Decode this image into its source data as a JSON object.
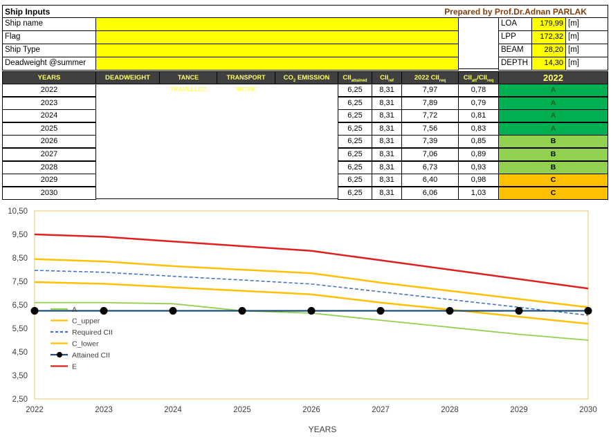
{
  "header": {
    "title": "Ship Inputs",
    "prepared_by": "Prepared by Prof.Dr.Adnan PARLAK"
  },
  "inputs": [
    {
      "label": "Ship name",
      "value": ""
    },
    {
      "label": "Flag",
      "value": ""
    },
    {
      "label": "Ship Type",
      "value": ""
    },
    {
      "label": "Deadweight @summer",
      "value": ""
    }
  ],
  "dimensions": [
    {
      "label": "LOA",
      "value": "179,99",
      "unit": "[m]"
    },
    {
      "label": "LPP",
      "value": "172,32",
      "unit": "[m]"
    },
    {
      "label": "BEAM",
      "value": "28,20",
      "unit": "[m]"
    },
    {
      "label": "DEPTH",
      "value": "14,30",
      "unit": "[m]"
    }
  ],
  "table": {
    "headers": {
      "years": "YEARS",
      "deadweight": "DEADWEIGHT",
      "distance": "TANCE TRAVELLED",
      "transport": "TRANSPORT WORK",
      "co2_main": "CO",
      "co2_sub": "2",
      "co2_tail": " EMISSION",
      "cii_att_main": "CII",
      "cii_att_sub": "attained",
      "cii_ref_main": "CII",
      "cii_ref_sub": "ref",
      "cii_req_main": "2022 CII",
      "cii_req_sub": "req",
      "ratio_main": "CII",
      "ratio_sub1": "att",
      "ratio_mid": "/CII",
      "ratio_sub2": "req",
      "grade_year": "2022"
    },
    "rows": [
      {
        "year": "2022",
        "cii_att": "6,25",
        "cii_ref": "8,31",
        "cii_req": "7,97",
        "ratio": "0,78",
        "grade": "A"
      },
      {
        "year": "2023",
        "cii_att": "6,25",
        "cii_ref": "8,31",
        "cii_req": "7,89",
        "ratio": "0,79",
        "grade": "A"
      },
      {
        "year": "2024",
        "cii_att": "6,25",
        "cii_ref": "8,31",
        "cii_req": "7,72",
        "ratio": "0,81",
        "grade": "A"
      },
      {
        "year": "2025",
        "cii_att": "6,25",
        "cii_ref": "8,31",
        "cii_req": "7,56",
        "ratio": "0,83",
        "grade": "A"
      },
      {
        "year": "2026",
        "cii_att": "6,25",
        "cii_ref": "8,31",
        "cii_req": "7,39",
        "ratio": "0,85",
        "grade": "B"
      },
      {
        "year": "2027",
        "cii_att": "6,25",
        "cii_ref": "8,31",
        "cii_req": "7,06",
        "ratio": "0,89",
        "grade": "B"
      },
      {
        "year": "2028",
        "cii_att": "6,25",
        "cii_ref": "8,31",
        "cii_req": "6,73",
        "ratio": "0,93",
        "grade": "B"
      },
      {
        "year": "2029",
        "cii_att": "6,25",
        "cii_ref": "8,31",
        "cii_req": "6,40",
        "ratio": "0,98",
        "grade": "C"
      },
      {
        "year": "2030",
        "cii_att": "6,25",
        "cii_ref": "8,31",
        "cii_req": "6,06",
        "ratio": "1,03",
        "grade": "C"
      }
    ]
  },
  "colors": {
    "A": "#92d050",
    "C_upper": "#ffc000",
    "Required CII": "#4472c4",
    "C_lower": "#ffc000",
    "Attained CII": "#1f4e79",
    "E": "#e02020"
  },
  "chart_data": {
    "type": "line",
    "x": [
      2022,
      2023,
      2024,
      2025,
      2026,
      2027,
      2028,
      2029,
      2030
    ],
    "xlabel": "YEARS",
    "ylim": [
      2.5,
      10.5
    ],
    "yticks": [
      "2,50",
      "3,50",
      "4,50",
      "5,50",
      "6,50",
      "7,50",
      "8,50",
      "9,50",
      "10,50"
    ],
    "ytick_values": [
      2.5,
      3.5,
      4.5,
      5.5,
      6.5,
      7.5,
      8.5,
      9.5,
      10.5
    ],
    "legend_position": "left",
    "grid": false,
    "series": [
      {
        "name": "A",
        "values": [
          6.6,
          6.6,
          6.55,
          6.25,
          6.15,
          5.85,
          5.55,
          5.25,
          5.0
        ],
        "style": "line"
      },
      {
        "name": "C_upper",
        "values": [
          8.45,
          8.35,
          8.15,
          8.0,
          7.85,
          7.45,
          7.1,
          6.75,
          6.4
        ],
        "style": "line"
      },
      {
        "name": "Required CII",
        "values": [
          7.97,
          7.89,
          7.72,
          7.56,
          7.39,
          7.06,
          6.73,
          6.4,
          6.06
        ],
        "style": "dashed"
      },
      {
        "name": "C_lower",
        "values": [
          7.47,
          7.4,
          7.25,
          7.1,
          6.95,
          6.6,
          6.3,
          6.0,
          5.7
        ],
        "style": "line"
      },
      {
        "name": "Attained CII",
        "values": [
          6.25,
          6.25,
          6.25,
          6.25,
          6.25,
          6.25,
          6.25,
          6.25,
          6.25
        ],
        "style": "markers"
      },
      {
        "name": "E",
        "values": [
          9.5,
          9.4,
          9.2,
          9.0,
          8.8,
          8.4,
          8.0,
          7.6,
          7.2
        ],
        "style": "line"
      }
    ]
  }
}
